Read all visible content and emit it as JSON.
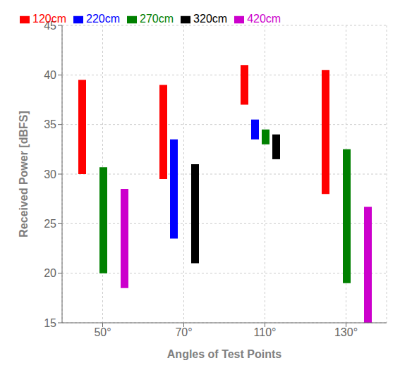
{
  "chart_data": {
    "type": "bar",
    "categories": [
      "50°",
      "70°",
      "110°",
      "130°"
    ],
    "series": [
      {
        "name": "120cm",
        "color": "#ff0000",
        "values": [
          [
            30.0,
            39.5
          ],
          [
            29.5,
            39.0
          ],
          [
            37.0,
            41.0
          ],
          [
            28.0,
            40.5
          ]
        ]
      },
      {
        "name": "220cm",
        "color": "#0000ff",
        "values": [
          null,
          [
            23.5,
            33.5
          ],
          [
            33.5,
            35.5
          ],
          null
        ]
      },
      {
        "name": "270cm",
        "color": "#008000",
        "values": [
          [
            20.0,
            30.7
          ],
          null,
          [
            33.0,
            34.5
          ],
          [
            19.0,
            32.5
          ]
        ]
      },
      {
        "name": "320cm",
        "color": "#000000",
        "values": [
          null,
          [
            21.0,
            31.0
          ],
          [
            31.5,
            34.0
          ],
          null
        ]
      },
      {
        "name": "420cm",
        "color": "#cc00cc",
        "values": [
          [
            18.5,
            28.5
          ],
          null,
          null,
          [
            15.0,
            26.7
          ]
        ]
      }
    ],
    "ylim": [
      15,
      45
    ],
    "yticks": [
      15,
      20,
      25,
      30,
      35,
      40,
      45
    ],
    "xlabel": "Angles of Test Points",
    "ylabel": "Received Power [dBFS]",
    "grid": true,
    "legend": "upper left"
  }
}
